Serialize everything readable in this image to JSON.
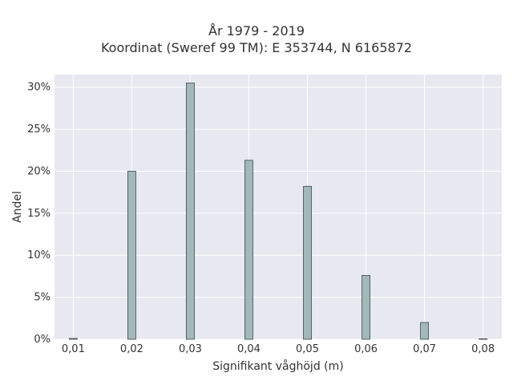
{
  "chart_data": {
    "type": "bar",
    "title_line1": "År 1979 - 2019",
    "title_line2": "Koordinat (Sweref 99 TM): E 353744, N 6165872",
    "xlabel": "Signifikant våghöjd (m)",
    "ylabel": "Andel",
    "x": [
      0.01,
      0.02,
      0.03,
      0.04,
      0.05,
      0.06,
      0.07,
      0.08
    ],
    "values": [
      0.1,
      20.0,
      30.5,
      21.3,
      18.2,
      7.6,
      2.0,
      0.05
    ],
    "x_tick_labels": [
      "0,01",
      "0,02",
      "0,03",
      "0,04",
      "0,05",
      "0,06",
      "0,07",
      "0,08"
    ],
    "y_tick_labels": [
      "0%",
      "5%",
      "10%",
      "15%",
      "20%",
      "25%",
      "30%"
    ],
    "y_ticks": [
      0,
      5,
      10,
      15,
      20,
      25,
      30
    ],
    "ylim": [
      0,
      31.5
    ],
    "xlim": [
      0.0068,
      0.0832
    ],
    "grid": true,
    "colors": {
      "plot_bg": "#e8e8f0",
      "bar_fill": "#a3b8b8",
      "bar_stroke": "#3a4a4a",
      "grid": "#ffffff"
    }
  }
}
